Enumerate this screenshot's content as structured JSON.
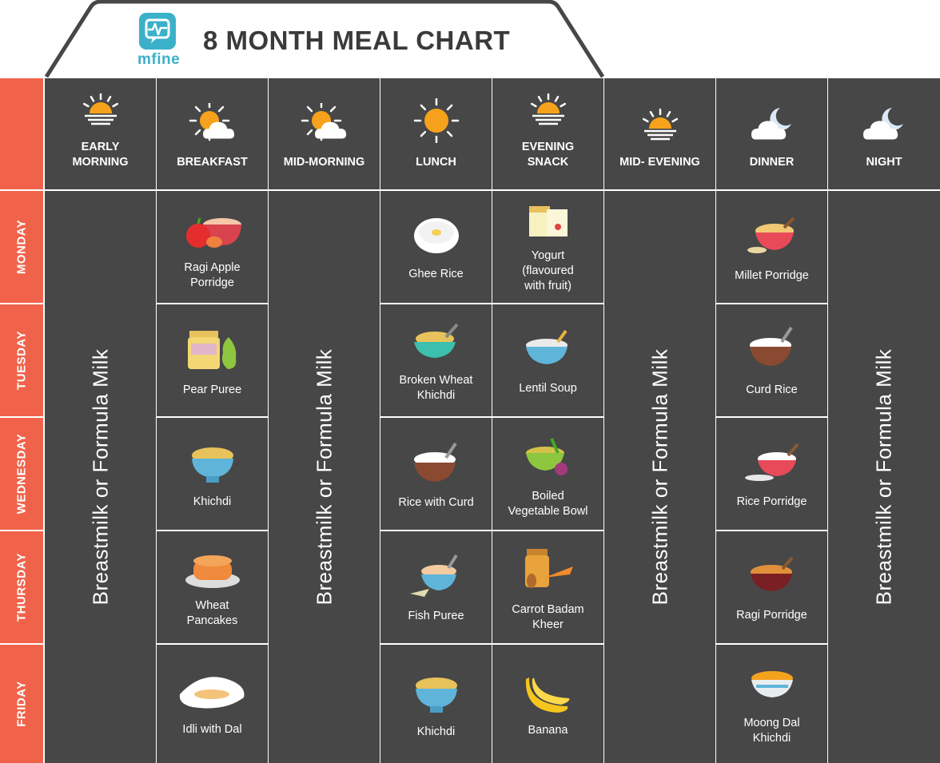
{
  "header": {
    "title": "8 MONTH MEAL CHART",
    "logo_text": "mfine"
  },
  "colors": {
    "background": "#ffffff",
    "cell": "#474747",
    "day_column": "#f0634a",
    "logo": "#3bb0c9",
    "sun": "#f7a21c"
  },
  "columns": [
    {
      "label": "EARLY\nMORNING",
      "icon": "sunrise-icon"
    },
    {
      "label": "BREAKFAST",
      "icon": "sun-cloud-icon"
    },
    {
      "label": "MID-MORNING",
      "icon": "sun-cloud-icon"
    },
    {
      "label": "LUNCH",
      "icon": "sun-icon"
    },
    {
      "label": "EVENING\nSNACK",
      "icon": "sunset-icon"
    },
    {
      "label": "MID- EVENING",
      "icon": "sunset-icon"
    },
    {
      "label": "DINNER",
      "icon": "moon-cloud-icon"
    },
    {
      "label": "NIGHT",
      "icon": "moon-cloud-icon"
    }
  ],
  "days": [
    "MONDAY",
    "TUESDAY",
    "WEDNESDAY",
    "THURSDAY",
    "FRIDAY"
  ],
  "milk_label": "Breastmilk or Formula Milk",
  "meals": {
    "breakfast": [
      {
        "name": "Ragi Apple\nPorridge",
        "icon": "apple-porridge-icon"
      },
      {
        "name": "Pear Puree",
        "icon": "pear-puree-jar-icon"
      },
      {
        "name": "Khichdi",
        "icon": "khichdi-bowl-icon"
      },
      {
        "name": "Wheat\nPancakes",
        "icon": "pancakes-icon"
      },
      {
        "name": "Idli with Dal",
        "icon": "idli-icon"
      }
    ],
    "lunch": [
      {
        "name": "Ghee Rice",
        "icon": "ghee-rice-icon"
      },
      {
        "name": "Broken Wheat\nKhichdi",
        "icon": "wheat-khichdi-icon"
      },
      {
        "name": "Rice with Curd",
        "icon": "curd-rice-bowl-icon"
      },
      {
        "name": "Fish Puree",
        "icon": "fish-puree-icon"
      },
      {
        "name": "Khichdi",
        "icon": "khichdi-bowl-icon"
      }
    ],
    "evening_snack": [
      {
        "name": "Yogurt\n(flavoured\nwith fruit)",
        "icon": "yogurt-cups-icon"
      },
      {
        "name": "Lentil Soup",
        "icon": "lentil-soup-icon"
      },
      {
        "name": "Boiled\nVegetable Bowl",
        "icon": "vegetable-bowl-icon"
      },
      {
        "name": "Carrot Badam\nKheer",
        "icon": "carrot-almond-jar-icon"
      },
      {
        "name": "Banana",
        "icon": "banana-icon"
      }
    ],
    "dinner": [
      {
        "name": "Millet Porridge",
        "icon": "millet-porridge-icon"
      },
      {
        "name": "Curd Rice",
        "icon": "curd-rice-icon"
      },
      {
        "name": "Rice Porridge",
        "icon": "rice-porridge-icon"
      },
      {
        "name": "Ragi Porridge",
        "icon": "ragi-porridge-icon"
      },
      {
        "name": "Moong Dal\nKhichdi",
        "icon": "moong-dal-khichdi-icon"
      }
    ]
  }
}
